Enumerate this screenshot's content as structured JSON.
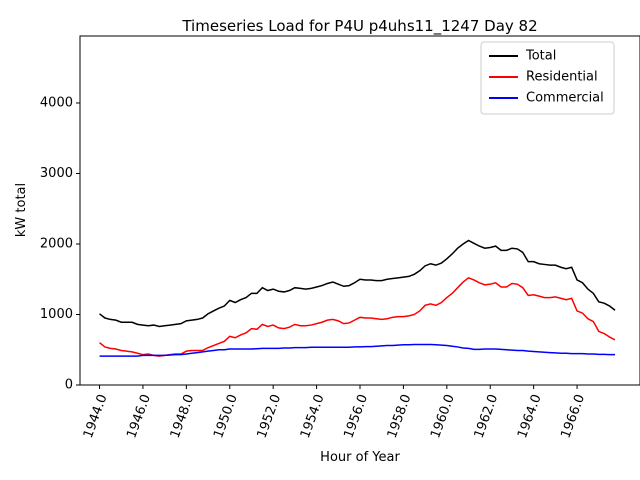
{
  "chart_data": {
    "type": "line",
    "title": "Timeseries Load for P4U p4uhs11_1247  Day 82",
    "xlabel": "Hour of Year",
    "ylabel": "kW total",
    "xlim": [
      1943.1,
      1968.9
    ],
    "ylim": [
      0,
      4950
    ],
    "xticks": [
      1944,
      1946,
      1948,
      1950,
      1952,
      1954,
      1956,
      1958,
      1960,
      1962,
      1964,
      1966
    ],
    "xtick_labels": [
      "1944.0",
      "1946.0",
      "1948.0",
      "1950.0",
      "1952.0",
      "1954.0",
      "1956.0",
      "1958.0",
      "1960.0",
      "1962.0",
      "1964.0",
      "1966.0"
    ],
    "yticks": [
      0,
      1000,
      2000,
      3000,
      4000
    ],
    "ytick_labels": [
      "0",
      "1000",
      "2000",
      "3000",
      "4000"
    ],
    "grid": false,
    "legend_position": "top-right",
    "x": [
      1944.0,
      1944.25,
      1944.5,
      1944.75,
      1945.0,
      1945.25,
      1945.5,
      1945.75,
      1946.0,
      1946.25,
      1946.5,
      1946.75,
      1947.0,
      1947.25,
      1947.5,
      1947.75,
      1948.0,
      1948.25,
      1948.5,
      1948.75,
      1949.0,
      1949.25,
      1949.5,
      1949.75,
      1950.0,
      1950.25,
      1950.5,
      1950.75,
      1951.0,
      1951.25,
      1951.5,
      1951.75,
      1952.0,
      1952.25,
      1952.5,
      1952.75,
      1953.0,
      1953.25,
      1953.5,
      1953.75,
      1954.0,
      1954.25,
      1954.5,
      1954.75,
      1955.0,
      1955.25,
      1955.5,
      1955.75,
      1956.0,
      1956.25,
      1956.5,
      1956.75,
      1957.0,
      1957.25,
      1957.5,
      1957.75,
      1958.0,
      1958.25,
      1958.5,
      1958.75,
      1959.0,
      1959.25,
      1959.5,
      1959.75,
      1960.0,
      1960.25,
      1960.5,
      1960.75,
      1961.0,
      1961.25,
      1961.5,
      1961.75,
      1962.0,
      1962.25,
      1962.5,
      1962.75,
      1963.0,
      1963.25,
      1963.5,
      1963.75,
      1964.0,
      1964.25,
      1964.5,
      1964.75,
      1965.0,
      1965.25,
      1965.5,
      1965.75,
      1966.0,
      1966.25,
      1966.5,
      1966.75,
      1967.0,
      1967.25,
      1967.5,
      1967.75
    ],
    "series": [
      {
        "name": "Total",
        "color": "#000000",
        "values": [
          1010,
          950,
          930,
          920,
          890,
          890,
          890,
          860,
          850,
          840,
          850,
          830,
          840,
          850,
          860,
          870,
          910,
          920,
          930,
          950,
          1010,
          1050,
          1090,
          1120,
          1200,
          1170,
          1210,
          1240,
          1300,
          1300,
          1380,
          1340,
          1360,
          1330,
          1320,
          1340,
          1380,
          1370,
          1360,
          1370,
          1390,
          1410,
          1440,
          1460,
          1430,
          1400,
          1410,
          1450,
          1500,
          1490,
          1490,
          1480,
          1480,
          1500,
          1510,
          1520,
          1530,
          1540,
          1570,
          1620,
          1690,
          1720,
          1700,
          1730,
          1790,
          1860,
          1940,
          2000,
          2050,
          2010,
          1970,
          1940,
          1950,
          1970,
          1910,
          1910,
          1940,
          1930,
          1880,
          1750,
          1750,
          1720,
          1710,
          1700,
          1700,
          1670,
          1650,
          1670,
          1490,
          1450,
          1360,
          1300,
          1180,
          1160,
          1120,
          1060
        ]
      },
      {
        "name": "Residential",
        "color": "#ff0000",
        "values": [
          600,
          540,
          520,
          510,
          490,
          480,
          470,
          450,
          430,
          440,
          420,
          410,
          420,
          430,
          440,
          440,
          480,
          490,
          490,
          490,
          530,
          560,
          590,
          620,
          690,
          670,
          710,
          740,
          800,
          790,
          860,
          830,
          850,
          810,
          800,
          820,
          860,
          840,
          840,
          850,
          870,
          890,
          920,
          930,
          910,
          870,
          880,
          920,
          960,
          950,
          950,
          940,
          930,
          940,
          960,
          970,
          970,
          980,
          1000,
          1050,
          1130,
          1150,
          1130,
          1170,
          1240,
          1300,
          1380,
          1460,
          1520,
          1490,
          1450,
          1420,
          1430,
          1450,
          1390,
          1390,
          1440,
          1430,
          1380,
          1270,
          1280,
          1260,
          1240,
          1240,
          1250,
          1230,
          1210,
          1230,
          1050,
          1020,
          940,
          900,
          760,
          730,
          680,
          640
        ]
      },
      {
        "name": "Commercial",
        "color": "#0000ff",
        "values": [
          410,
          410,
          410,
          410,
          410,
          410,
          410,
          410,
          420,
          420,
          420,
          420,
          420,
          425,
          430,
          430,
          440,
          450,
          460,
          470,
          480,
          490,
          500,
          500,
          510,
          510,
          510,
          510,
          510,
          515,
          520,
          520,
          520,
          520,
          525,
          525,
          530,
          530,
          530,
          535,
          535,
          535,
          535,
          535,
          535,
          535,
          535,
          540,
          540,
          545,
          545,
          550,
          555,
          560,
          560,
          565,
          570,
          570,
          575,
          575,
          575,
          575,
          570,
          565,
          560,
          550,
          540,
          525,
          520,
          505,
          505,
          510,
          510,
          510,
          505,
          500,
          495,
          490,
          490,
          480,
          475,
          470,
          465,
          460,
          455,
          450,
          450,
          445,
          445,
          445,
          440,
          440,
          435,
          435,
          430,
          430
        ]
      }
    ]
  }
}
